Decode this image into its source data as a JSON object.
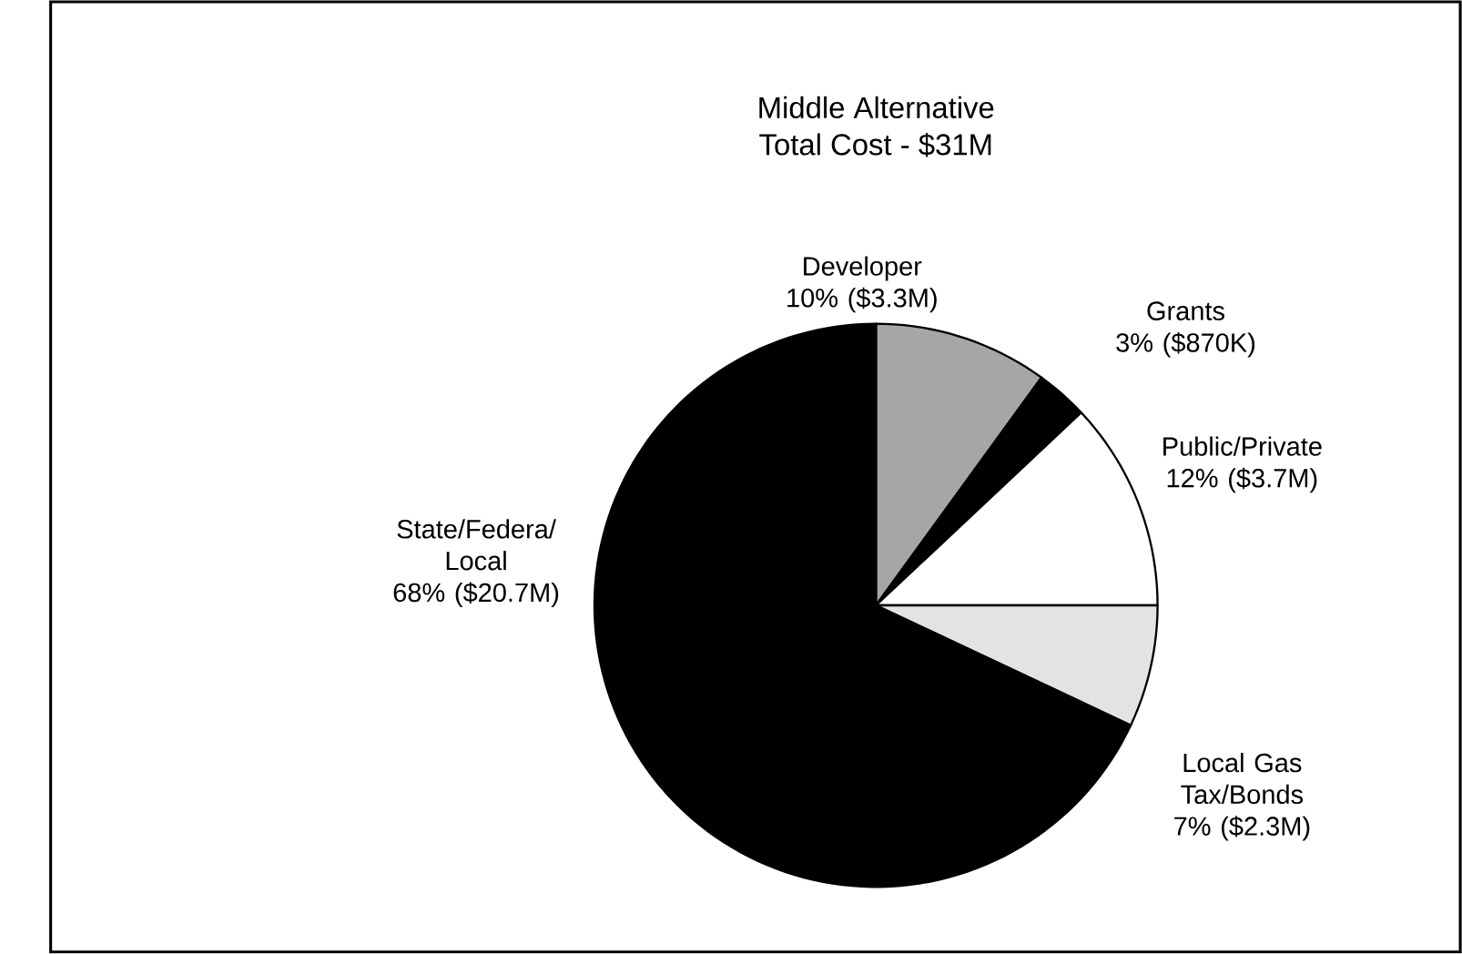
{
  "chart_data": {
    "type": "pie",
    "title": "Middle Alternative",
    "subtitle": "Total Cost - $31M",
    "categories": [
      "Developer",
      "Grants",
      "Public/Private",
      "Local Gas Tax/Bonds",
      "State/Federa/ Local"
    ],
    "values": [
      10,
      3,
      12,
      7,
      68
    ],
    "value_labels": [
      "10% ($3.3M)",
      "3% ($870K)",
      "12% ($3.7M)",
      "7% ($2.3M)",
      "68% ($20.7M)"
    ],
    "colors": [
      "#a6a6a6",
      "#000000",
      "#ffffff",
      "#e3e3e3",
      "#000000"
    ],
    "legend": false
  }
}
